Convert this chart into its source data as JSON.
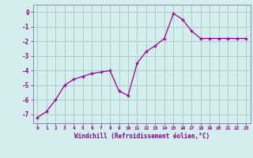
{
  "x": [
    0,
    1,
    2,
    3,
    4,
    5,
    6,
    7,
    8,
    9,
    10,
    11,
    12,
    13,
    14,
    15,
    16,
    17,
    18,
    19,
    20,
    21,
    22,
    23
  ],
  "y": [
    -7.2,
    -6.8,
    -6.0,
    -5.0,
    -4.6,
    -4.4,
    -4.2,
    -4.1,
    -4.0,
    -5.4,
    -5.7,
    -3.5,
    -2.7,
    -2.3,
    -1.8,
    -0.1,
    -0.5,
    -1.3,
    -1.8,
    -1.8,
    -1.8,
    -1.8,
    -1.8,
    -1.8
  ],
  "xlabel": "Windchill (Refroidissement éolien,°C)",
  "xticks": [
    0,
    1,
    2,
    3,
    4,
    5,
    6,
    7,
    8,
    9,
    10,
    11,
    12,
    13,
    14,
    15,
    16,
    17,
    18,
    19,
    20,
    21,
    22,
    23
  ],
  "yticks": [
    0,
    -1,
    -2,
    -3,
    -4,
    -5,
    -6,
    -7
  ],
  "ylim": [
    -7.6,
    0.5
  ],
  "xlim": [
    -0.5,
    23.5
  ],
  "line_color": "#990099",
  "marker": "+",
  "bg_color": "#d4eeee",
  "grid_color": "#aacccc",
  "axis_label_color": "#880088",
  "tick_label_color": "#880088",
  "spine_color": "#8888aa"
}
